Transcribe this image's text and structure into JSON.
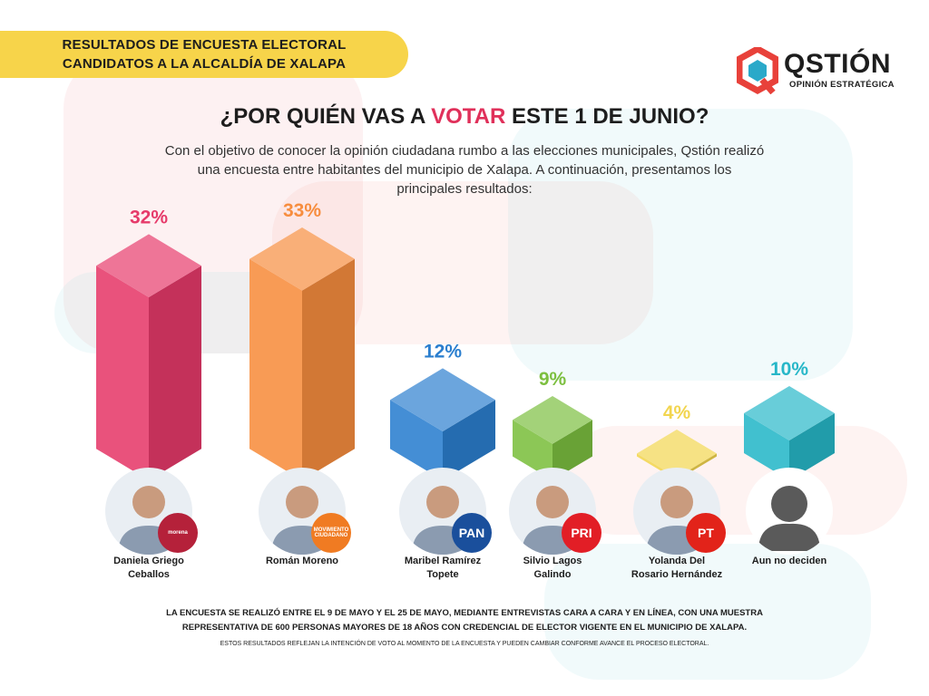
{
  "banner": {
    "line1": "RESULTADOS DE ENCUESTA ELECTORAL",
    "line2": "CANDIDATOS A LA ALCALDÍA DE XALAPA"
  },
  "logo": {
    "name": "QSTIÓN",
    "tagline": "OPINIÓN ESTRATÉGICA",
    "colors": [
      "#e8413a",
      "#2aa9c9"
    ]
  },
  "question": {
    "prefix": "¿POR QUIÉN VAS A ",
    "highlight": "VOTAR",
    "suffix": " ESTE 1 DE JUNIO?"
  },
  "intro": "Con el objetivo de conocer la opinión ciudadana rumbo a las elecciones municipales, Qstión realizó una encuesta entre habitantes del municipio de Xalapa. A continuación, presentamos los principales resultados:",
  "chart_data": {
    "type": "bar",
    "categories": [
      "Daniela Griego Ceballos",
      "Román Moreno",
      "Maribel Ramírez Topete",
      "Silvio Lagos Galindo",
      "Yolanda Del Rosario Hernández",
      "Aun no deciden"
    ],
    "values": [
      32,
      33,
      12,
      9,
      4,
      10
    ],
    "value_labels": [
      "32%",
      "33%",
      "12%",
      "9%",
      "4%",
      "10%"
    ],
    "colors": [
      "#e63a6a",
      "#f78d3e",
      "#2b7fcf",
      "#7cbf3f",
      "#f2d54f",
      "#27b7c8"
    ],
    "title": "",
    "xlabel": "",
    "ylabel": ""
  },
  "candidates": [
    {
      "name_line1": "Daniela Griego",
      "name_line2": "Ceballos",
      "party": "morena",
      "party_color": "#b5213a",
      "icon": "person-photo"
    },
    {
      "name_line1": "Román Moreno",
      "name_line2": "",
      "party": "MOVIMIENTO CIUDADANO",
      "party_color": "#f07b22",
      "icon": "person-photo"
    },
    {
      "name_line1": "Maribel Ramírez",
      "name_line2": "Topete",
      "party": "PAN",
      "party_color": "#1a4f9c",
      "icon": "person-photo"
    },
    {
      "name_line1": "Silvio Lagos",
      "name_line2": "Galindo",
      "party": "PRI",
      "party_color": "#e21e26",
      "icon": "person-photo"
    },
    {
      "name_line1": "Yolanda Del",
      "name_line2": "Rosario Hernández",
      "party": "PT",
      "party_color": "#e2231a",
      "icon": "person-photo"
    },
    {
      "name_line1": "Aun no deciden",
      "name_line2": "",
      "party": "",
      "party_color": "",
      "icon": "generic-user-icon"
    }
  ],
  "footnote": {
    "line1": "LA ENCUESTA SE REALIZÓ  ENTRE EL 9 DE MAYO Y EL 25 DE MAYO, MEDIANTE ENTREVISTAS CARA A CARA Y EN LÍNEA, CON UNA MUESTRA",
    "line2": "REPRESENTATIVA DE 600 PERSONAS MAYORES DE 18 AÑOS CON CREDENCIAL DE ELECTOR VIGENTE EN EL MUNICIPIO DE XALAPA.",
    "disclaimer": "ESTOS RESULTADOS REFLEJAN LA INTENCIÓN DE VOTO AL MOMENTO DE LA ENCUESTA Y PUEDEN CAMBIAR CONFORME AVANCE EL PROCESO ELECTORAL."
  }
}
